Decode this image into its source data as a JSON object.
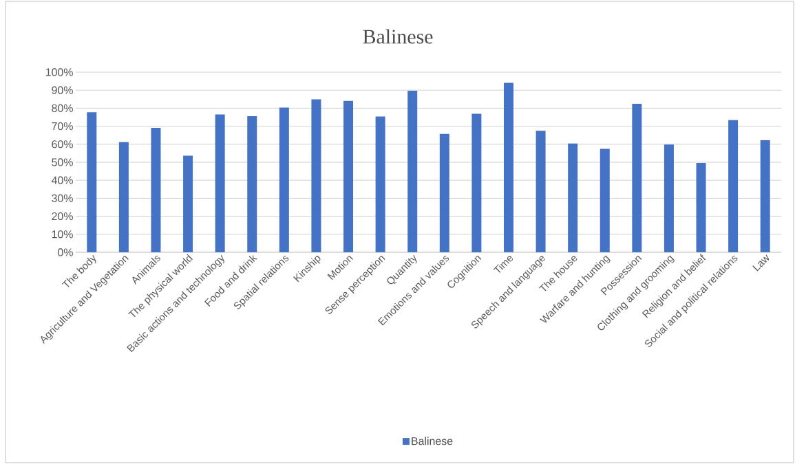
{
  "chart_data": {
    "type": "bar",
    "title": "Balinese",
    "categories": [
      "The body",
      "Agriculture and Vegetation",
      "Animals",
      "The physical world",
      "Basic actions and technology",
      "Food and drink",
      "Spatial relations",
      "Kinship",
      "Motion",
      "Sense perception",
      "Quantity",
      "Emotions and values",
      "Cognition",
      "Time",
      "Speech and language",
      "The house",
      "Warfare and hunting",
      "Possession",
      "Clothing and grooming",
      "Religion and belief",
      "Social and political relations",
      "Law"
    ],
    "series": [
      {
        "name": "Balinese",
        "color": "#4472c4",
        "values": [
          77.8,
          61.2,
          69.1,
          53.6,
          76.5,
          75.6,
          80.3,
          84.9,
          84.1,
          75.4,
          89.7,
          65.7,
          76.9,
          94.1,
          67.5,
          60.4,
          57.4,
          82.4,
          59.8,
          49.6,
          73.4,
          62.2
        ]
      }
    ],
    "ylim": [
      0,
      100
    ],
    "yticks": [
      {
        "value": 0,
        "label": "0%"
      },
      {
        "value": 10,
        "label": "10%"
      },
      {
        "value": 20,
        "label": "20%"
      },
      {
        "value": 30,
        "label": "30%"
      },
      {
        "value": 40,
        "label": "40%"
      },
      {
        "value": 50,
        "label": "50%"
      },
      {
        "value": 60,
        "label": "60%"
      },
      {
        "value": 70,
        "label": "70%"
      },
      {
        "value": 80,
        "label": "80%"
      },
      {
        "value": 90,
        "label": "90%"
      },
      {
        "value": 100,
        "label": "100%"
      }
    ],
    "grid": "y",
    "legend": "bottom"
  }
}
